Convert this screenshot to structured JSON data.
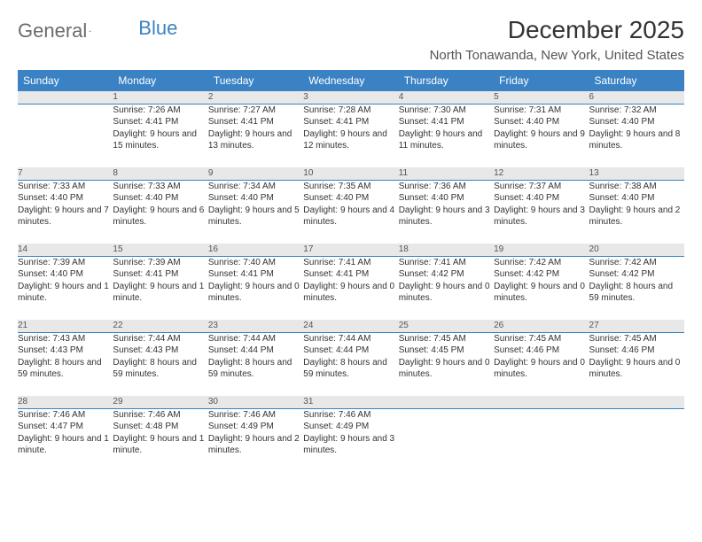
{
  "logo": {
    "part1": "General",
    "part2": "Blue"
  },
  "header": {
    "month_title": "December 2025",
    "location": "North Tonawanda, New York, United States"
  },
  "colors": {
    "header_bg": "#3a82c4",
    "header_text": "#ffffff",
    "daynum_bg": "#e8e8e8",
    "daynum_border": "#3a82c4",
    "body_text": "#333333",
    "logo_gray": "#6b6b6b",
    "logo_blue": "#3a82c4"
  },
  "weekdays": [
    "Sunday",
    "Monday",
    "Tuesday",
    "Wednesday",
    "Thursday",
    "Friday",
    "Saturday"
  ],
  "weeks": [
    {
      "nums": [
        "",
        "1",
        "2",
        "3",
        "4",
        "5",
        "6"
      ],
      "cells": [
        {
          "sunrise": "",
          "sunset": "",
          "daylight": ""
        },
        {
          "sunrise": "Sunrise: 7:26 AM",
          "sunset": "Sunset: 4:41 PM",
          "daylight": "Daylight: 9 hours and 15 minutes."
        },
        {
          "sunrise": "Sunrise: 7:27 AM",
          "sunset": "Sunset: 4:41 PM",
          "daylight": "Daylight: 9 hours and 13 minutes."
        },
        {
          "sunrise": "Sunrise: 7:28 AM",
          "sunset": "Sunset: 4:41 PM",
          "daylight": "Daylight: 9 hours and 12 minutes."
        },
        {
          "sunrise": "Sunrise: 7:30 AM",
          "sunset": "Sunset: 4:41 PM",
          "daylight": "Daylight: 9 hours and 11 minutes."
        },
        {
          "sunrise": "Sunrise: 7:31 AM",
          "sunset": "Sunset: 4:40 PM",
          "daylight": "Daylight: 9 hours and 9 minutes."
        },
        {
          "sunrise": "Sunrise: 7:32 AM",
          "sunset": "Sunset: 4:40 PM",
          "daylight": "Daylight: 9 hours and 8 minutes."
        }
      ]
    },
    {
      "nums": [
        "7",
        "8",
        "9",
        "10",
        "11",
        "12",
        "13"
      ],
      "cells": [
        {
          "sunrise": "Sunrise: 7:33 AM",
          "sunset": "Sunset: 4:40 PM",
          "daylight": "Daylight: 9 hours and 7 minutes."
        },
        {
          "sunrise": "Sunrise: 7:33 AM",
          "sunset": "Sunset: 4:40 PM",
          "daylight": "Daylight: 9 hours and 6 minutes."
        },
        {
          "sunrise": "Sunrise: 7:34 AM",
          "sunset": "Sunset: 4:40 PM",
          "daylight": "Daylight: 9 hours and 5 minutes."
        },
        {
          "sunrise": "Sunrise: 7:35 AM",
          "sunset": "Sunset: 4:40 PM",
          "daylight": "Daylight: 9 hours and 4 minutes."
        },
        {
          "sunrise": "Sunrise: 7:36 AM",
          "sunset": "Sunset: 4:40 PM",
          "daylight": "Daylight: 9 hours and 3 minutes."
        },
        {
          "sunrise": "Sunrise: 7:37 AM",
          "sunset": "Sunset: 4:40 PM",
          "daylight": "Daylight: 9 hours and 3 minutes."
        },
        {
          "sunrise": "Sunrise: 7:38 AM",
          "sunset": "Sunset: 4:40 PM",
          "daylight": "Daylight: 9 hours and 2 minutes."
        }
      ]
    },
    {
      "nums": [
        "14",
        "15",
        "16",
        "17",
        "18",
        "19",
        "20"
      ],
      "cells": [
        {
          "sunrise": "Sunrise: 7:39 AM",
          "sunset": "Sunset: 4:40 PM",
          "daylight": "Daylight: 9 hours and 1 minute."
        },
        {
          "sunrise": "Sunrise: 7:39 AM",
          "sunset": "Sunset: 4:41 PM",
          "daylight": "Daylight: 9 hours and 1 minute."
        },
        {
          "sunrise": "Sunrise: 7:40 AM",
          "sunset": "Sunset: 4:41 PM",
          "daylight": "Daylight: 9 hours and 0 minutes."
        },
        {
          "sunrise": "Sunrise: 7:41 AM",
          "sunset": "Sunset: 4:41 PM",
          "daylight": "Daylight: 9 hours and 0 minutes."
        },
        {
          "sunrise": "Sunrise: 7:41 AM",
          "sunset": "Sunset: 4:42 PM",
          "daylight": "Daylight: 9 hours and 0 minutes."
        },
        {
          "sunrise": "Sunrise: 7:42 AM",
          "sunset": "Sunset: 4:42 PM",
          "daylight": "Daylight: 9 hours and 0 minutes."
        },
        {
          "sunrise": "Sunrise: 7:42 AM",
          "sunset": "Sunset: 4:42 PM",
          "daylight": "Daylight: 8 hours and 59 minutes."
        }
      ]
    },
    {
      "nums": [
        "21",
        "22",
        "23",
        "24",
        "25",
        "26",
        "27"
      ],
      "cells": [
        {
          "sunrise": "Sunrise: 7:43 AM",
          "sunset": "Sunset: 4:43 PM",
          "daylight": "Daylight: 8 hours and 59 minutes."
        },
        {
          "sunrise": "Sunrise: 7:44 AM",
          "sunset": "Sunset: 4:43 PM",
          "daylight": "Daylight: 8 hours and 59 minutes."
        },
        {
          "sunrise": "Sunrise: 7:44 AM",
          "sunset": "Sunset: 4:44 PM",
          "daylight": "Daylight: 8 hours and 59 minutes."
        },
        {
          "sunrise": "Sunrise: 7:44 AM",
          "sunset": "Sunset: 4:44 PM",
          "daylight": "Daylight: 8 hours and 59 minutes."
        },
        {
          "sunrise": "Sunrise: 7:45 AM",
          "sunset": "Sunset: 4:45 PM",
          "daylight": "Daylight: 9 hours and 0 minutes."
        },
        {
          "sunrise": "Sunrise: 7:45 AM",
          "sunset": "Sunset: 4:46 PM",
          "daylight": "Daylight: 9 hours and 0 minutes."
        },
        {
          "sunrise": "Sunrise: 7:45 AM",
          "sunset": "Sunset: 4:46 PM",
          "daylight": "Daylight: 9 hours and 0 minutes."
        }
      ]
    },
    {
      "nums": [
        "28",
        "29",
        "30",
        "31",
        "",
        "",
        ""
      ],
      "cells": [
        {
          "sunrise": "Sunrise: 7:46 AM",
          "sunset": "Sunset: 4:47 PM",
          "daylight": "Daylight: 9 hours and 1 minute."
        },
        {
          "sunrise": "Sunrise: 7:46 AM",
          "sunset": "Sunset: 4:48 PM",
          "daylight": "Daylight: 9 hours and 1 minute."
        },
        {
          "sunrise": "Sunrise: 7:46 AM",
          "sunset": "Sunset: 4:49 PM",
          "daylight": "Daylight: 9 hours and 2 minutes."
        },
        {
          "sunrise": "Sunrise: 7:46 AM",
          "sunset": "Sunset: 4:49 PM",
          "daylight": "Daylight: 9 hours and 3 minutes."
        },
        {
          "sunrise": "",
          "sunset": "",
          "daylight": ""
        },
        {
          "sunrise": "",
          "sunset": "",
          "daylight": ""
        },
        {
          "sunrise": "",
          "sunset": "",
          "daylight": ""
        }
      ]
    }
  ]
}
